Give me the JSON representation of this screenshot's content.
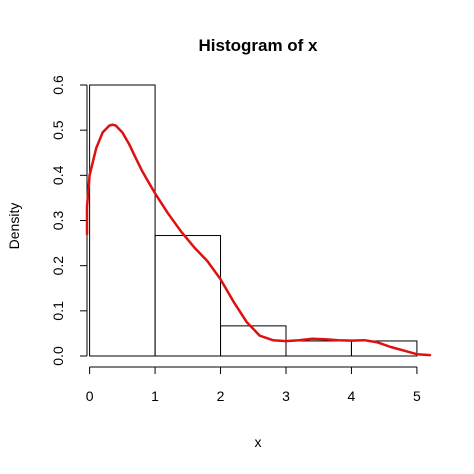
{
  "chart_data": {
    "type": "bar",
    "title": "Histogram of x",
    "xlabel": "x",
    "ylabel": "Density",
    "xlim": [
      -0.04,
      5.2
    ],
    "ylim": [
      0,
      0.6
    ],
    "x_ticks": [
      "0",
      "1",
      "2",
      "3",
      "4",
      "5"
    ],
    "y_ticks": [
      "0.0",
      "0.1",
      "0.2",
      "0.3",
      "0.4",
      "0.5",
      "0.6"
    ],
    "bins": [
      {
        "start": 0,
        "end": 1,
        "density": 0.6
      },
      {
        "start": 1,
        "end": 2,
        "density": 0.2667
      },
      {
        "start": 2,
        "end": 3,
        "density": 0.0667
      },
      {
        "start": 3,
        "end": 4,
        "density": 0.0333
      },
      {
        "start": 4,
        "end": 5,
        "density": 0.0333
      }
    ],
    "density_curve": {
      "color": "#dd1111",
      "x": [
        -0.2,
        -0.1,
        0,
        0.1,
        0.2,
        0.3,
        0.35,
        0.4,
        0.5,
        0.6,
        0.7,
        0.8,
        0.9,
        1.0,
        1.2,
        1.4,
        1.6,
        1.8,
        2.0,
        2.2,
        2.4,
        2.6,
        2.8,
        3.0,
        3.2,
        3.4,
        3.6,
        3.8,
        4.0,
        4.2,
        4.4,
        4.6,
        4.8,
        5.0,
        5.2
      ],
      "y": [
        0.27,
        0.33,
        0.4,
        0.46,
        0.495,
        0.51,
        0.512,
        0.51,
        0.495,
        0.47,
        0.44,
        0.41,
        0.385,
        0.36,
        0.315,
        0.275,
        0.24,
        0.21,
        0.17,
        0.12,
        0.075,
        0.045,
        0.035,
        0.033,
        0.035,
        0.038,
        0.037,
        0.035,
        0.034,
        0.035,
        0.03,
        0.02,
        0.012,
        0.004,
        0.002
      ]
    }
  }
}
